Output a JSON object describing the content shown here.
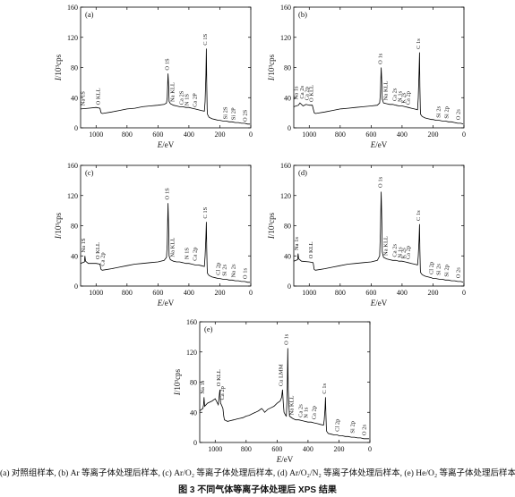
{
  "caption": {
    "subcaption": "(a) 对照组样本, (b) Ar 等离子体处理后样本, (c) Ar/O₂ 等离子体处理后样本, (d) Ar/O₂/N₂ 等离子体处理后样本, (e) He/O₂ 等离子体处理后样本",
    "title": "图 3   不同气体等离子体处理后 XPS 结果"
  },
  "chart_data": [
    {
      "id": "a",
      "panel_label": "(a)",
      "type": "line",
      "xlabel": "E/eV",
      "ylabel": "I/10³cps",
      "xlim": [
        1100,
        0
      ],
      "ylim": [
        0,
        160
      ],
      "xticks": [
        1000,
        800,
        600,
        400,
        200,
        0
      ],
      "yticks": [
        0,
        40,
        80,
        120,
        160
      ],
      "series": [
        {
          "x": [
            1100,
            1050,
            1000,
            975,
            968,
            960,
            900,
            850,
            800,
            750,
            700,
            650,
            600,
            560,
            545,
            540,
            535,
            531,
            528,
            520,
            500,
            480,
            460,
            440,
            420,
            400,
            380,
            360,
            340,
            320,
            300,
            295,
            290,
            287,
            285,
            282,
            280,
            270,
            250,
            230,
            210,
            200,
            180,
            160,
            140,
            120,
            100,
            80,
            60,
            40,
            20,
            5
          ],
          "y": [
            25,
            26,
            27,
            26,
            20,
            19,
            21,
            23,
            25,
            26,
            28,
            29,
            30,
            31,
            33,
            40,
            72,
            55,
            35,
            32,
            30,
            29,
            28,
            28,
            27,
            27,
            26,
            25,
            24,
            23,
            22,
            35,
            70,
            105,
            60,
            25,
            18,
            14,
            12,
            11,
            10,
            10,
            9,
            9,
            8,
            8,
            7,
            7,
            6,
            6,
            5,
            5
          ]
        }
      ],
      "annotations": [
        {
          "text": "Na 1S",
          "x": 1075,
          "y": 27
        },
        {
          "text": "O KLL",
          "x": 975,
          "y": 28
        },
        {
          "text": "O 1S",
          "x": 531,
          "y": 74
        },
        {
          "text": "Na KLL",
          "x": 495,
          "y": 32
        },
        {
          "text": "Ca 2S",
          "x": 438,
          "y": 28
        },
        {
          "text": "N 1S",
          "x": 402,
          "y": 27
        },
        {
          "text": "Ca 2P",
          "x": 350,
          "y": 25
        },
        {
          "text": "C 1S",
          "x": 284,
          "y": 107
        },
        {
          "text": "Si 2S",
          "x": 152,
          "y": 9
        },
        {
          "text": "Si 2P",
          "x": 102,
          "y": 8
        },
        {
          "text": "O 2S",
          "x": 25,
          "y": 6
        }
      ]
    },
    {
      "id": "b",
      "panel_label": "(b)",
      "type": "line",
      "xlabel": "E/eV",
      "ylabel": "I/10³cps",
      "xlim": [
        1100,
        0
      ],
      "ylim": [
        0,
        160
      ],
      "xticks": [
        1000,
        800,
        600,
        400,
        200,
        0
      ],
      "yticks": [
        0,
        40,
        80,
        120,
        160
      ],
      "series": [
        {
          "x": [
            1100,
            1070,
            1060,
            1040,
            1020,
            1000,
            980,
            968,
            960,
            900,
            850,
            800,
            750,
            700,
            650,
            600,
            560,
            545,
            540,
            535,
            531,
            528,
            520,
            500,
            480,
            460,
            440,
            420,
            400,
            380,
            360,
            340,
            320,
            300,
            295,
            290,
            287,
            285,
            282,
            280,
            270,
            250,
            230,
            210,
            200,
            180,
            160,
            140,
            120,
            100,
            80,
            60,
            40,
            20,
            5
          ],
          "y": [
            28,
            30,
            33,
            29,
            31,
            30,
            30,
            20,
            19,
            21,
            23,
            25,
            26,
            27,
            28,
            29,
            30,
            33,
            45,
            80,
            60,
            38,
            33,
            32,
            31,
            31,
            30,
            29,
            29,
            28,
            27,
            26,
            25,
            24,
            40,
            75,
            100,
            55,
            25,
            18,
            15,
            13,
            12,
            11,
            11,
            10,
            10,
            9,
            9,
            8,
            8,
            7,
            6,
            6,
            5
          ]
        }
      ],
      "annotations": [
        {
          "text": "Na 1s",
          "x": 1075,
          "y": 35
        },
        {
          "text": "Ca 2s",
          "x": 1035,
          "y": 36
        },
        {
          "text": "Ca 2p",
          "x": 1005,
          "y": 34
        },
        {
          "text": "O KLL",
          "x": 975,
          "y": 32
        },
        {
          "text": "O 1s",
          "x": 531,
          "y": 82
        },
        {
          "text": "Na KLL",
          "x": 495,
          "y": 34
        },
        {
          "text": "Ca 2s",
          "x": 438,
          "y": 33
        },
        {
          "text": "N 1s",
          "x": 402,
          "y": 32
        },
        {
          "text": "K 2s",
          "x": 378,
          "y": 30
        },
        {
          "text": "Ca 2p",
          "x": 350,
          "y": 28
        },
        {
          "text": "C 1s",
          "x": 284,
          "y": 102
        },
        {
          "text": "Si 2s",
          "x": 152,
          "y": 11
        },
        {
          "text": "Si 2p",
          "x": 102,
          "y": 10
        },
        {
          "text": "O 2s",
          "x": 25,
          "y": 8
        }
      ]
    },
    {
      "id": "c",
      "panel_label": "(c)",
      "type": "line",
      "xlabel": "E/eV",
      "ylabel": "I/10³cps",
      "xlim": [
        1100,
        0
      ],
      "ylim": [
        0,
        160
      ],
      "xticks": [
        1000,
        800,
        600,
        400,
        200,
        0
      ],
      "yticks": [
        0,
        40,
        80,
        120,
        160
      ],
      "series": [
        {
          "x": [
            1100,
            1075,
            1072,
            1068,
            1050,
            1000,
            975,
            968,
            960,
            900,
            850,
            800,
            750,
            700,
            650,
            600,
            560,
            545,
            540,
            535,
            531,
            528,
            520,
            500,
            480,
            460,
            440,
            420,
            400,
            380,
            360,
            340,
            320,
            300,
            295,
            290,
            287,
            285,
            282,
            280,
            270,
            250,
            230,
            210,
            200,
            180,
            160,
            140,
            120,
            100,
            80,
            60,
            40,
            20,
            5
          ],
          "y": [
            30,
            32,
            40,
            33,
            30,
            30,
            29,
            22,
            21,
            23,
            25,
            27,
            29,
            30,
            31,
            32,
            34,
            38,
            55,
            110,
            75,
            40,
            35,
            33,
            32,
            32,
            31,
            30,
            30,
            29,
            28,
            28,
            27,
            26,
            40,
            65,
            85,
            50,
            24,
            17,
            14,
            12,
            11,
            10,
            10,
            9,
            9,
            8,
            8,
            7,
            7,
            6,
            6,
            5,
            5
          ]
        }
      ],
      "annotations": [
        {
          "text": "Na 1S",
          "x": 1072,
          "y": 42
        },
        {
          "text": "O KLL",
          "x": 978,
          "y": 33
        },
        {
          "text": "Ca 2p",
          "x": 948,
          "y": 24
        },
        {
          "text": "O 1S",
          "x": 531,
          "y": 112
        },
        {
          "text": "Na KLL",
          "x": 495,
          "y": 36
        },
        {
          "text": "N 1S",
          "x": 402,
          "y": 33
        },
        {
          "text": "Ca 2p",
          "x": 350,
          "y": 31
        },
        {
          "text": "C 1S",
          "x": 284,
          "y": 87
        },
        {
          "text": "Cl 2p",
          "x": 200,
          "y": 12
        },
        {
          "text": "Si 2s",
          "x": 160,
          "y": 11
        },
        {
          "text": "Na 2s",
          "x": 102,
          "y": 9
        },
        {
          "text": "O 1s",
          "x": 25,
          "y": 7
        }
      ]
    },
    {
      "id": "d",
      "panel_label": "(d)",
      "type": "line",
      "xlabel": "E/eV",
      "ylabel": "I/10³cps",
      "xlim": [
        1100,
        0
      ],
      "ylim": [
        0,
        160
      ],
      "xticks": [
        1000,
        800,
        600,
        400,
        200,
        0
      ],
      "yticks": [
        0,
        40,
        80,
        120,
        160
      ],
      "series": [
        {
          "x": [
            1100,
            1075,
            1072,
            1068,
            1050,
            1000,
            975,
            968,
            960,
            900,
            850,
            800,
            750,
            700,
            650,
            600,
            560,
            545,
            540,
            535,
            531,
            528,
            520,
            500,
            480,
            460,
            440,
            420,
            400,
            380,
            360,
            340,
            320,
            300,
            295,
            290,
            287,
            285,
            282,
            280,
            270,
            250,
            230,
            210,
            200,
            180,
            160,
            140,
            120,
            100,
            80,
            60,
            40,
            20,
            5
          ],
          "y": [
            33,
            35,
            43,
            36,
            33,
            32,
            31,
            22,
            21,
            23,
            25,
            27,
            29,
            30,
            31,
            32,
            34,
            40,
            70,
            125,
            85,
            45,
            38,
            36,
            35,
            34,
            34,
            33,
            33,
            32,
            31,
            30,
            29,
            28,
            40,
            62,
            82,
            48,
            22,
            18,
            15,
            13,
            12,
            11,
            10,
            10,
            9,
            9,
            8,
            8,
            7,
            7,
            6,
            6,
            5
          ]
        }
      ],
      "annotations": [
        {
          "text": "Na 1s",
          "x": 1072,
          "y": 45
        },
        {
          "text": "O KLL",
          "x": 978,
          "y": 34
        },
        {
          "text": "O 1s",
          "x": 531,
          "y": 128
        },
        {
          "text": "Na KLL",
          "x": 495,
          "y": 38
        },
        {
          "text": "Ca 2s",
          "x": 438,
          "y": 36
        },
        {
          "text": "N 1s",
          "x": 402,
          "y": 35
        },
        {
          "text": "K 2s",
          "x": 378,
          "y": 34
        },
        {
          "text": "Ca 2p",
          "x": 350,
          "y": 33
        },
        {
          "text": "C 1s",
          "x": 284,
          "y": 84
        },
        {
          "text": "Cl 2p",
          "x": 200,
          "y": 13
        },
        {
          "text": "Si 2s",
          "x": 152,
          "y": 12
        },
        {
          "text": "Si 2p",
          "x": 102,
          "y": 10
        },
        {
          "text": "O 2s",
          "x": 25,
          "y": 8
        }
      ]
    },
    {
      "id": "e",
      "panel_label": "(e)",
      "type": "line",
      "xlabel": "E/eV",
      "ylabel": "I/10³cps",
      "xlim": [
        1100,
        0
      ],
      "ylim": [
        0,
        160
      ],
      "xticks": [
        1000,
        800,
        600,
        400,
        200,
        0
      ],
      "yticks": [
        0,
        40,
        80,
        120,
        160
      ],
      "series": [
        {
          "x": [
            1100,
            1080,
            1075,
            1072,
            1068,
            1050,
            1020,
            1000,
            980,
            975,
            970,
            965,
            960,
            950,
            945,
            940,
            920,
            900,
            880,
            860,
            840,
            820,
            800,
            780,
            760,
            740,
            720,
            700,
            690,
            680,
            660,
            640,
            620,
            600,
            580,
            570,
            565,
            560,
            555,
            550,
            545,
            540,
            535,
            531,
            528,
            520,
            500,
            480,
            460,
            440,
            420,
            400,
            380,
            360,
            340,
            320,
            300,
            295,
            290,
            287,
            285,
            282,
            280,
            270,
            250,
            230,
            210,
            200,
            180,
            160,
            140,
            120,
            100,
            80,
            60,
            40,
            20,
            5
          ],
          "y": [
            42,
            45,
            50,
            60,
            48,
            52,
            55,
            58,
            50,
            60,
            70,
            52,
            50,
            45,
            35,
            30,
            28,
            29,
            30,
            31,
            32,
            33,
            35,
            36,
            38,
            40,
            42,
            45,
            43,
            40,
            44,
            46,
            48,
            52,
            55,
            60,
            70,
            52,
            40,
            38,
            36,
            35,
            60,
            125,
            70,
            35,
            32,
            30,
            30,
            29,
            28,
            27,
            27,
            26,
            25,
            24,
            23,
            30,
            45,
            60,
            40,
            22,
            15,
            12,
            11,
            10,
            10,
            9,
            9,
            8,
            8,
            7,
            7,
            6,
            6,
            5,
            5,
            5
          ]
        }
      ],
      "annotations": [
        {
          "text": "Na 1s",
          "x": 1072,
          "y": 62
        },
        {
          "text": "O KLL",
          "x": 968,
          "y": 72
        },
        {
          "text": "Ca 2p",
          "x": 945,
          "y": 54
        },
        {
          "text": "Cu LMM",
          "x": 565,
          "y": 72
        },
        {
          "text": "O 1s",
          "x": 531,
          "y": 127
        },
        {
          "text": "Na KLL",
          "x": 495,
          "y": 34
        },
        {
          "text": "Ca 2s",
          "x": 438,
          "y": 31
        },
        {
          "text": "N 1s",
          "x": 402,
          "y": 30
        },
        {
          "text": "Ca 2p",
          "x": 350,
          "y": 28
        },
        {
          "text": "C 1s",
          "x": 284,
          "y": 62
        },
        {
          "text": "Cl 2p",
          "x": 200,
          "y": 12
        },
        {
          "text": "Si 2p",
          "x": 102,
          "y": 10
        },
        {
          "text": "O 2s",
          "x": 25,
          "y": 7
        }
      ]
    }
  ]
}
